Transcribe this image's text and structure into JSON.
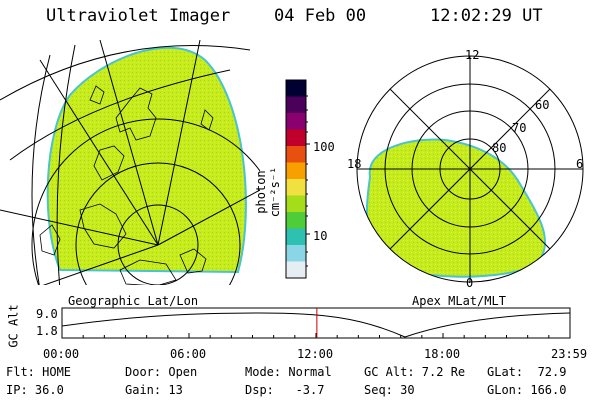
{
  "header": {
    "instrument": "Ultraviolet Imager",
    "date": "04 Feb 00",
    "time": "12:02:29 UT"
  },
  "colorbar": {
    "unit_label": "photon cm⁻²s⁻¹",
    "ticks": [
      "100",
      "10"
    ],
    "colors": [
      "#000033",
      "#4b0059",
      "#8a006e",
      "#c0002a",
      "#e85010",
      "#f7a000",
      "#f0e040",
      "#a6dd1b",
      "#4fcc3a",
      "#2ec0b0",
      "#8ad6e6",
      "#e6eef2"
    ]
  },
  "left_panel": {
    "caption": "Geographic Lat/Lon"
  },
  "right_panel": {
    "caption": "Apex MLat/MLT",
    "mlt_labels": {
      "top": "12",
      "left": "18",
      "right": "6",
      "bottom": "0"
    },
    "lat_labels": [
      "60",
      "70",
      "80"
    ]
  },
  "timeline": {
    "axis_title": "GC Alt",
    "y_labels": [
      "9.0",
      "1.8"
    ],
    "x_labels": [
      "00:00",
      "06:00",
      "12:00",
      "18:00",
      "23:59"
    ],
    "current_time_fraction": 0.5017,
    "marker_color": "#cc0000"
  },
  "info": {
    "row1": {
      "flt": "Flt: HOME",
      "door": "Door: Open",
      "mode": "Mode: Normal",
      "gc_alt": "GC Alt: 7.2 Re",
      "glat": "GLat:  72.9"
    },
    "row2": {
      "ip": "IP: 36.0",
      "gain": "Gain: 13",
      "dsp": "Dsp:   -3.7",
      "seq": "Seq: 30",
      "glon": "GLon: 166.0"
    }
  },
  "image_color": "#c7ec1e"
}
